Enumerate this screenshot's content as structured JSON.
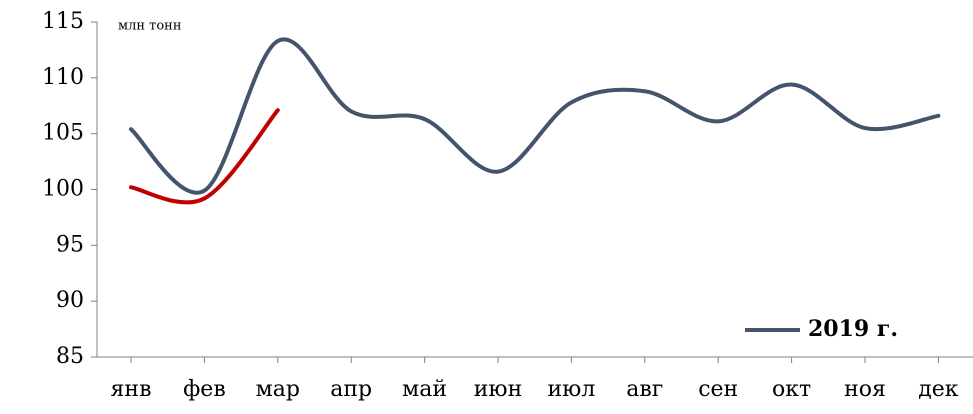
{
  "chart_data": {
    "type": "line",
    "unit_label": "млн тонн",
    "categories": [
      "янв",
      "фев",
      "мар",
      "апр",
      "май",
      "июн",
      "июл",
      "авг",
      "сен",
      "окт",
      "ноя",
      "дек"
    ],
    "series": [
      {
        "name": "2019 г.",
        "color": "#44546a",
        "values": [
          105.4,
          99.9,
          113.3,
          107.0,
          106.3,
          101.6,
          107.8,
          108.8,
          106.1,
          109.4,
          105.5,
          106.6
        ]
      },
      {
        "color": "#c00000",
        "values": [
          100.2,
          99.2,
          107.1,
          null,
          null,
          null,
          null,
          null,
          null,
          null,
          null,
          null
        ]
      }
    ],
    "ylim": [
      85,
      115
    ],
    "yticks": [
      85,
      90,
      95,
      100,
      105,
      110,
      115
    ],
    "legend": "lower right"
  }
}
